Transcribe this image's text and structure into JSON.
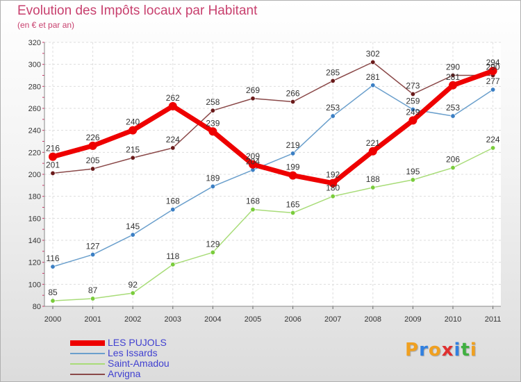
{
  "title": "Evolution des Impôts locaux par Habitant",
  "subtitle": "(en € et par an)",
  "logo_letters": [
    "P",
    "r",
    "o",
    "x",
    "i",
    "t",
    "i"
  ],
  "logo_colors": [
    "#f0a020",
    "#3080e0",
    "#f0a020",
    "#e03030",
    "#3080e0",
    "#40b040",
    "#f0a020"
  ],
  "chart_data": {
    "type": "line",
    "title": "Evolution des Impôts locaux par Habitant",
    "subtitle": "(en € et par an)",
    "x": [
      "2000",
      "2001",
      "2002",
      "2003",
      "2004",
      "2005",
      "2006",
      "2007",
      "2008",
      "2009",
      "2010",
      "2011"
    ],
    "y_ticks": [
      "80",
      "100",
      "120",
      "140",
      "160",
      "180",
      "200",
      "220",
      "240",
      "260",
      "280",
      "300",
      "320"
    ],
    "ylim": [
      80,
      320
    ],
    "grid": true,
    "legend_position": "bottom-left",
    "series": [
      {
        "name": "LES PUJOLS",
        "color": "#ee0000",
        "marker": "#ee0000",
        "highlight": true,
        "values": [
          216,
          226,
          240,
          262,
          239,
          209,
          199,
          192,
          221,
          249,
          281,
          294
        ],
        "labels": [
          "216",
          "226",
          "240",
          "262",
          "239",
          "209",
          "199",
          "192",
          "221",
          "249",
          "281",
          "294"
        ]
      },
      {
        "name": "Les Issards",
        "color": "#6a9fcc",
        "marker": "#3b7fc4",
        "highlight": false,
        "values": [
          116,
          127,
          145,
          168,
          189,
          204,
          219,
          253,
          281,
          259,
          253,
          277
        ],
        "labels": [
          "116",
          "127",
          "145",
          "168",
          "189",
          "204",
          "219",
          "253",
          "281",
          "259",
          "253",
          "277"
        ]
      },
      {
        "name": "Saint-Amadou",
        "color": "#a8dc78",
        "marker": "#7acc3c",
        "highlight": false,
        "values": [
          85,
          87,
          92,
          118,
          129,
          168,
          165,
          180,
          188,
          195,
          206,
          224
        ],
        "labels": [
          "85",
          "87",
          "92",
          "118",
          "129",
          "168",
          "165",
          "180",
          "188",
          "195",
          "206",
          "224"
        ]
      },
      {
        "name": "Arvigna",
        "color": "#8a4848",
        "marker": "#6a1a1a",
        "highlight": false,
        "values": [
          201,
          205,
          215,
          224,
          258,
          269,
          266,
          285,
          302,
          273,
          290,
          290
        ],
        "labels": [
          "201",
          "205",
          "215",
          "224",
          "258",
          "269",
          "266",
          "285",
          "302",
          "273",
          "290",
          "290"
        ]
      }
    ]
  }
}
